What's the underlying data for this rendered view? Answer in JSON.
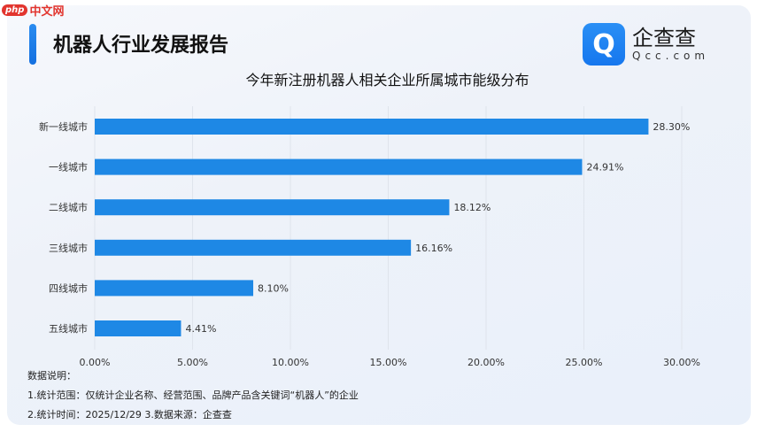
{
  "watermark": {
    "badge": "php",
    "text": "中文网"
  },
  "header": {
    "title": "机器人行业发展报告",
    "logo_cn": "企查查",
    "logo_en": "Qcc.com"
  },
  "chart_data": {
    "type": "bar",
    "orientation": "horizontal",
    "title": "今年新注册机器人相关企业所属城市能级分布",
    "categories": [
      "新一线城市",
      "一线城市",
      "二线城市",
      "三线城市",
      "四线城市",
      "五线城市"
    ],
    "values": [
      28.3,
      24.91,
      18.12,
      16.16,
      8.1,
      4.41
    ],
    "data_labels": [
      "28.30%",
      "24.91%",
      "18.12%",
      "16.16%",
      "8.10%",
      "4.41%"
    ],
    "xlim": [
      0,
      30
    ],
    "xticks": [
      "0.00%",
      "5.00%",
      "10.00%",
      "15.00%",
      "20.00%",
      "25.00%",
      "30.00%"
    ],
    "grid": true,
    "bar_color": "#1e88e5"
  },
  "notes": {
    "heading": "数据说明：",
    "line1": "1.统计范围：仅统计企业名称、经营范围、品牌产品含关键词“机器人”的企业",
    "line2": "2.统计时间：2025/12/29  3.数据来源：企查查"
  }
}
